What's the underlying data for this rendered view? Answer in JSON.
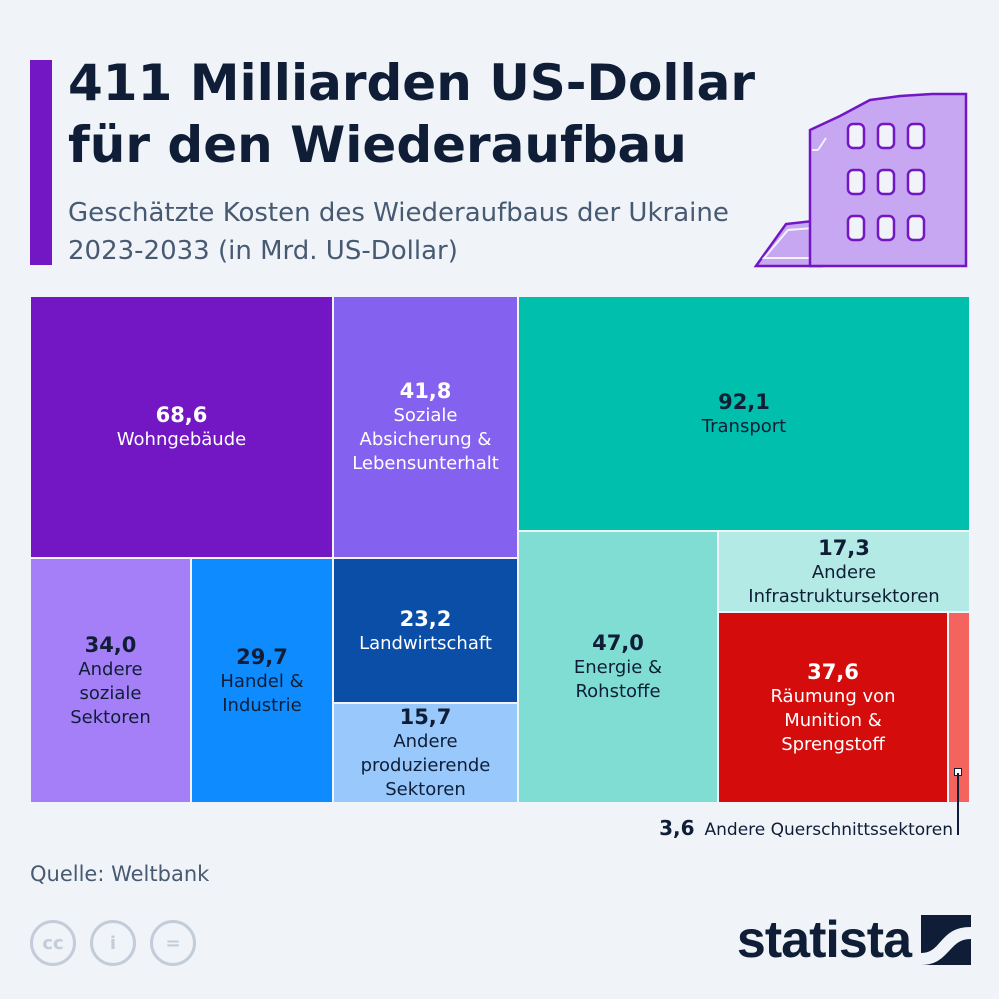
{
  "header": {
    "title": "411 Milliarden US-Dollar für den Wiederaufbau",
    "subtitle": "Geschätzte Kosten des Wiederaufbaus der Ukraine 2023-2033 (in Mrd. US-Dollar)"
  },
  "chart_data": {
    "type": "treemap",
    "title": "411 Milliarden US-Dollar für den Wiederaufbau",
    "subtitle": "Geschätzte Kosten des Wiederaufbaus der Ukraine 2023-2033 (in Mrd. US-Dollar)",
    "unit": "Mrd. US-Dollar",
    "total": 411,
    "items": [
      {
        "label": "Wohngebäude",
        "value": "68,6",
        "num": 68.6,
        "color": "#7217c3",
        "text_color": "#ffffff"
      },
      {
        "label": "Soziale\nAbsicherung &\nLebensunterhalt",
        "value": "41,8",
        "num": 41.8,
        "color": "#8561f0",
        "text_color": "#ffffff"
      },
      {
        "label": "Transport",
        "value": "92,1",
        "num": 92.1,
        "color": "#00bfad",
        "text_color": "#0f1e36"
      },
      {
        "label": "Andere\nsoziale\nSektoren",
        "value": "34,0",
        "num": 34.0,
        "color": "#a47ff7",
        "text_color": "#0f1e36"
      },
      {
        "label": "Handel &\nIndustrie",
        "value": "29,7",
        "num": 29.7,
        "color": "#0e8cff",
        "text_color": "#0f1e36"
      },
      {
        "label": "Landwirtschaft",
        "value": "23,2",
        "num": 23.2,
        "color": "#0a4ea8",
        "text_color": "#ffffff"
      },
      {
        "label": "Andere\nproduzierende\nSektoren",
        "value": "15,7",
        "num": 15.7,
        "color": "#98c8fc",
        "text_color": "#0f1e36"
      },
      {
        "label": "Energie &\nRohstoffe",
        "value": "47,0",
        "num": 47.0,
        "color": "#7fddd4",
        "text_color": "#0f1e36"
      },
      {
        "label": "Andere\nInfrastruktursektoren",
        "value": "17,3",
        "num": 17.3,
        "color": "#b3eae5",
        "text_color": "#0f1e36"
      },
      {
        "label": "Räumung von\nMunition &\nSprengstoff",
        "value": "37,6",
        "num": 37.6,
        "color": "#d40c0c",
        "text_color": "#ffffff"
      },
      {
        "label": "Andere Querschnittssektoren",
        "value": "3,6",
        "num": 3.6,
        "color": "#f4635d",
        "text_color": "#0f1e36",
        "callout": true
      }
    ]
  },
  "callout": {
    "value": "3,6",
    "label": "Andere Querschnittssektoren"
  },
  "footer": {
    "source": "Quelle: Weltbank",
    "cc_icons": [
      "cc",
      "i",
      "="
    ],
    "brand": "statista"
  }
}
